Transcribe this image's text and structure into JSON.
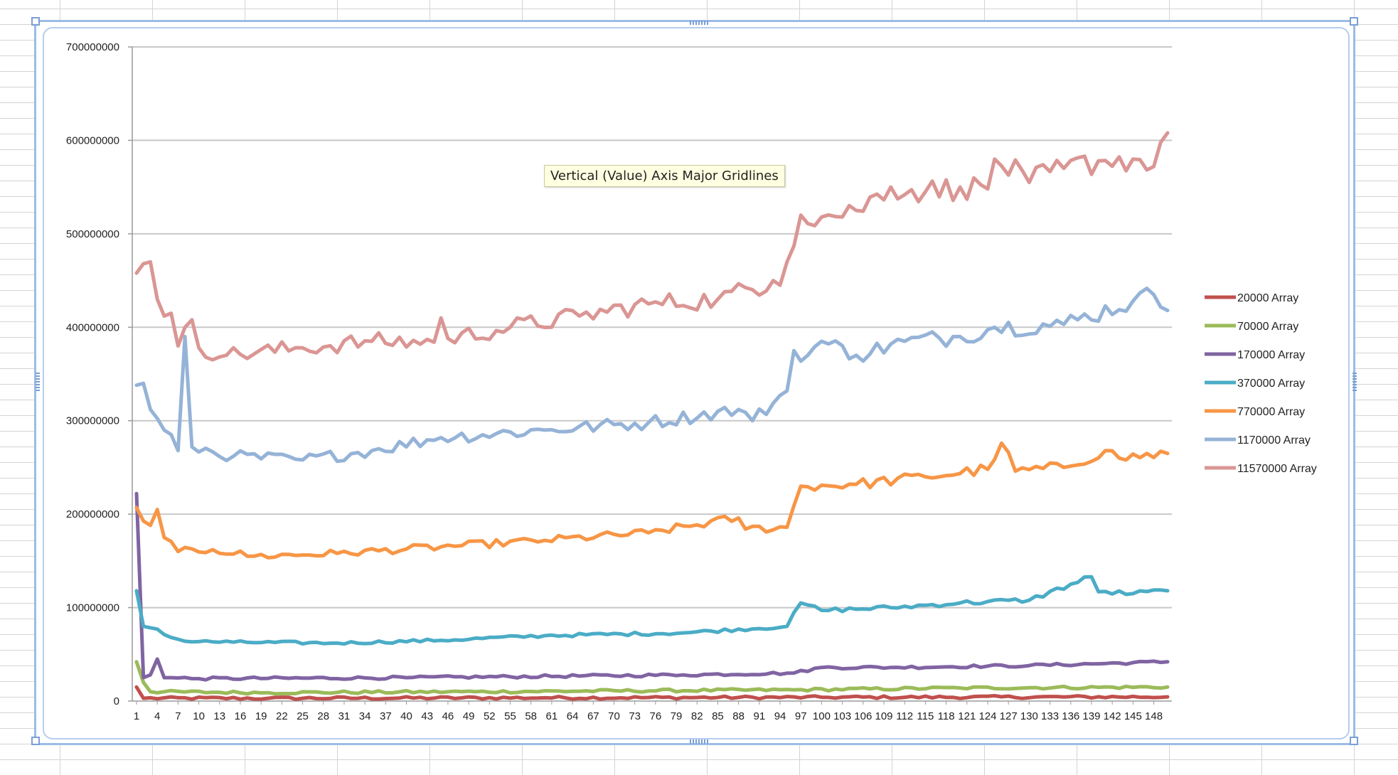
{
  "tooltip": {
    "text": "Vertical (Value) Axis Major Gridlines"
  },
  "chart_data": {
    "type": "line",
    "title": "",
    "xlabel": "",
    "ylabel": "",
    "ylim": [
      0,
      700000000
    ],
    "yticks": [
      "0",
      "100000000",
      "200000000",
      "300000000",
      "400000000",
      "500000000",
      "600000000",
      "700000000"
    ],
    "x_count": 150,
    "xtick_every": 3,
    "grid": true,
    "legend_position": "right",
    "series": [
      {
        "name": "20000 Array",
        "color": "#c0504d",
        "keypoints": [
          [
            1,
            15000000
          ],
          [
            2,
            3000000
          ],
          [
            20,
            3000000
          ],
          [
            60,
            3500000
          ],
          [
            100,
            4000000
          ],
          [
            150,
            4500000
          ]
        ]
      },
      {
        "name": "70000 Array",
        "color": "#9bbb59",
        "keypoints": [
          [
            1,
            42000000
          ],
          [
            2,
            20000000
          ],
          [
            3,
            10000000
          ],
          [
            20,
            9000000
          ],
          [
            50,
            10000000
          ],
          [
            96,
            12000000
          ],
          [
            120,
            14000000
          ],
          [
            150,
            15000000
          ]
        ]
      },
      {
        "name": "170000 Array",
        "color": "#8064a2",
        "keypoints": [
          [
            1,
            222000000
          ],
          [
            2,
            25000000
          ],
          [
            3,
            28000000
          ],
          [
            4,
            45000000
          ],
          [
            5,
            25000000
          ],
          [
            10,
            24000000
          ],
          [
            40,
            25000000
          ],
          [
            80,
            28000000
          ],
          [
            96,
            30000000
          ],
          [
            100,
            36000000
          ],
          [
            110,
            36000000
          ],
          [
            130,
            38000000
          ],
          [
            150,
            42000000
          ]
        ]
      },
      {
        "name": "370000 Array",
        "color": "#4bacc6",
        "keypoints": [
          [
            1,
            118000000
          ],
          [
            2,
            80000000
          ],
          [
            4,
            77000000
          ],
          [
            6,
            68000000
          ],
          [
            8,
            64000000
          ],
          [
            15,
            63000000
          ],
          [
            30,
            62000000
          ],
          [
            45,
            65000000
          ],
          [
            60,
            70000000
          ],
          [
            80,
            73000000
          ],
          [
            95,
            80000000
          ],
          [
            97,
            105000000
          ],
          [
            100,
            97000000
          ],
          [
            110,
            100000000
          ],
          [
            120,
            105000000
          ],
          [
            130,
            108000000
          ],
          [
            139,
            133000000
          ],
          [
            140,
            117000000
          ],
          [
            145,
            115000000
          ],
          [
            150,
            118000000
          ]
        ]
      },
      {
        "name": "770000 Array",
        "color": "#f79646",
        "keypoints": [
          [
            1,
            207000000
          ],
          [
            3,
            188000000
          ],
          [
            4,
            205000000
          ],
          [
            5,
            175000000
          ],
          [
            7,
            160000000
          ],
          [
            12,
            162000000
          ],
          [
            18,
            155000000
          ],
          [
            30,
            158000000
          ],
          [
            45,
            165000000
          ],
          [
            60,
            172000000
          ],
          [
            75,
            180000000
          ],
          [
            88,
            196000000
          ],
          [
            89,
            184000000
          ],
          [
            95,
            186000000
          ],
          [
            97,
            230000000
          ],
          [
            105,
            232000000
          ],
          [
            115,
            240000000
          ],
          [
            124,
            248000000
          ],
          [
            126,
            276000000
          ],
          [
            128,
            246000000
          ],
          [
            135,
            250000000
          ],
          [
            141,
            268000000
          ],
          [
            143,
            260000000
          ],
          [
            150,
            265000000
          ]
        ]
      },
      {
        "name": "1170000 Array",
        "color": "#95b3d7",
        "keypoints": [
          [
            1,
            338000000
          ],
          [
            2,
            340000000
          ],
          [
            3,
            312000000
          ],
          [
            5,
            290000000
          ],
          [
            7,
            268000000
          ],
          [
            8,
            390000000
          ],
          [
            9,
            272000000
          ],
          [
            15,
            262000000
          ],
          [
            25,
            258000000
          ],
          [
            35,
            268000000
          ],
          [
            45,
            282000000
          ],
          [
            60,
            290000000
          ],
          [
            75,
            298000000
          ],
          [
            88,
            312000000
          ],
          [
            90,
            300000000
          ],
          [
            95,
            332000000
          ],
          [
            96,
            375000000
          ],
          [
            98,
            370000000
          ],
          [
            100,
            385000000
          ],
          [
            105,
            370000000
          ],
          [
            112,
            385000000
          ],
          [
            120,
            390000000
          ],
          [
            125,
            400000000
          ],
          [
            135,
            403000000
          ],
          [
            145,
            428000000
          ],
          [
            148,
            435000000
          ],
          [
            150,
            418000000
          ]
        ]
      },
      {
        "name": "11570000 Array",
        "color": "#da9694",
        "keypoints": [
          [
            1,
            458000000
          ],
          [
            2,
            468000000
          ],
          [
            3,
            470000000
          ],
          [
            4,
            430000000
          ],
          [
            5,
            412000000
          ],
          [
            6,
            415000000
          ],
          [
            7,
            380000000
          ],
          [
            8,
            400000000
          ],
          [
            9,
            408000000
          ],
          [
            10,
            378000000
          ],
          [
            14,
            370000000
          ],
          [
            25,
            378000000
          ],
          [
            35,
            385000000
          ],
          [
            44,
            384000000
          ],
          [
            45,
            410000000
          ],
          [
            46,
            388000000
          ],
          [
            55,
            400000000
          ],
          [
            65,
            412000000
          ],
          [
            75,
            425000000
          ],
          [
            85,
            430000000
          ],
          [
            93,
            450000000
          ],
          [
            94,
            445000000
          ],
          [
            95,
            470000000
          ],
          [
            97,
            520000000
          ],
          [
            100,
            518000000
          ],
          [
            105,
            525000000
          ],
          [
            110,
            550000000
          ],
          [
            115,
            545000000
          ],
          [
            120,
            550000000
          ],
          [
            124,
            548000000
          ],
          [
            125,
            580000000
          ],
          [
            130,
            555000000
          ],
          [
            135,
            570000000
          ],
          [
            140,
            578000000
          ],
          [
            145,
            580000000
          ],
          [
            148,
            572000000
          ],
          [
            149,
            598000000
          ],
          [
            150,
            608000000
          ]
        ]
      }
    ]
  }
}
